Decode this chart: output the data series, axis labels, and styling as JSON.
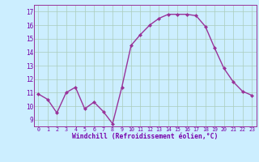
{
  "x": [
    0,
    1,
    2,
    3,
    4,
    5,
    6,
    7,
    8,
    9,
    10,
    11,
    12,
    13,
    14,
    15,
    16,
    17,
    18,
    19,
    20,
    21,
    22,
    23
  ],
  "y": [
    10.9,
    10.5,
    9.5,
    11.0,
    11.4,
    9.8,
    10.3,
    9.6,
    8.7,
    11.4,
    14.5,
    15.3,
    16.0,
    16.5,
    16.8,
    16.8,
    16.8,
    16.7,
    15.9,
    14.3,
    12.8,
    11.8,
    11.1,
    10.8
  ],
  "line_color": "#993399",
  "marker": "D",
  "marker_size": 2.0,
  "bg_color": "#cceeff",
  "grid_color": "#aaccbb",
  "xlabel": "Windchill (Refroidissement éolien,°C)",
  "xlabel_color": "#7700aa",
  "tick_color": "#7700aa",
  "xlim": [
    -0.5,
    23.5
  ],
  "ylim": [
    8.5,
    17.5
  ],
  "yticks": [
    9,
    10,
    11,
    12,
    13,
    14,
    15,
    16,
    17
  ],
  "xticks": [
    0,
    1,
    2,
    3,
    4,
    5,
    6,
    7,
    8,
    9,
    10,
    11,
    12,
    13,
    14,
    15,
    16,
    17,
    18,
    19,
    20,
    21,
    22,
    23
  ],
  "linewidth": 1.0
}
